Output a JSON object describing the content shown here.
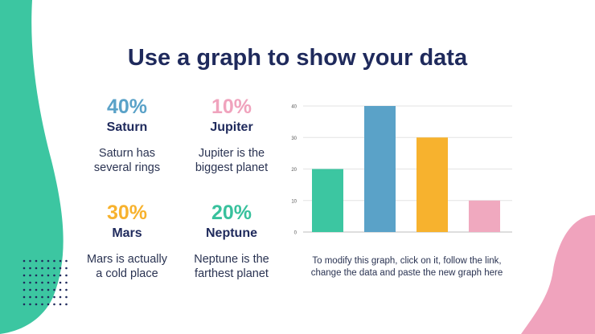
{
  "title": "Use a graph to show your data",
  "stats": [
    {
      "percent": "40%",
      "name": "Saturn",
      "desc_line1": "Saturn has",
      "desc_line2": "several rings",
      "color": "#5aa2c8"
    },
    {
      "percent": "10%",
      "name": "Jupiter",
      "desc_line1": "Jupiter is the",
      "desc_line2": "biggest planet",
      "color": "#f0a3bd"
    },
    {
      "percent": "30%",
      "name": "Mars",
      "desc_line1": "Mars is actually",
      "desc_line2": "a cold place",
      "color": "#f7b22e"
    },
    {
      "percent": "20%",
      "name": "Neptune",
      "desc_line1": "Neptune is the",
      "desc_line2": "farthest planet",
      "color": "#38c19d"
    }
  ],
  "caption_line1": "To modify this graph, click on it, follow the link,",
  "caption_line2": "change the data and paste the new graph here",
  "colors": {
    "teal": "#3cc6a1",
    "pink": "#f0a3bd",
    "navy": "#1f2a5c"
  },
  "chart_data": {
    "type": "bar",
    "categories": [
      "",
      "",
      "",
      ""
    ],
    "values": [
      20,
      40,
      30,
      10
    ],
    "colors": [
      "#3cc6a1",
      "#5aa2c8",
      "#f7b22e",
      "#f0a9bf"
    ],
    "ylim": [
      0,
      40
    ],
    "yticks": [
      0,
      10,
      20,
      30,
      40
    ],
    "grid": true
  }
}
